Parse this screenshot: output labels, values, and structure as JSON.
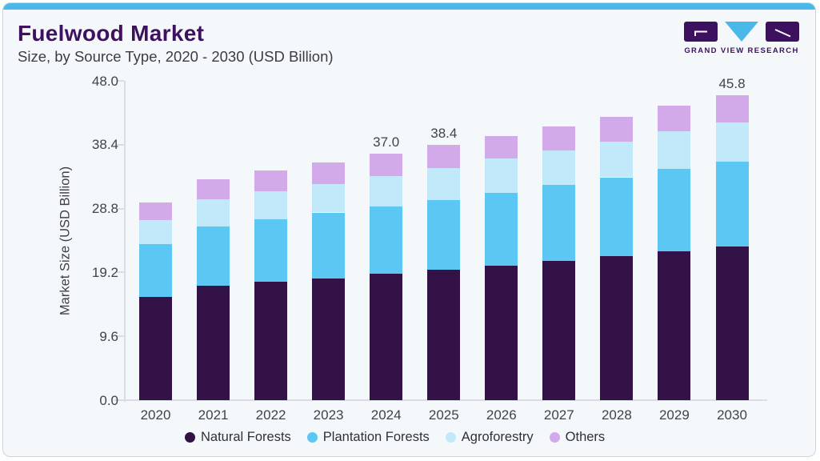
{
  "header": {
    "title": "Fuelwood Market",
    "subtitle": "Size, by Source Type, 2020 - 2030 (USD Billion)"
  },
  "logo": {
    "text": "GRAND VIEW RESEARCH"
  },
  "colors": {
    "accent_strip": "#4ab9e9",
    "card_background": "#f4f8fb",
    "card_border": "#ccd6de",
    "brand_purple": "#3e1060",
    "axis_line": "#d9dee4",
    "tick_text": "#3f434c",
    "body_text": "#3c3c42"
  },
  "chart_data": {
    "type": "bar",
    "stacked": true,
    "title": "Fuelwood Market",
    "subtitle": "Size, by Source Type, 2020 - 2030 (USD Billion)",
    "xlabel": "",
    "ylabel": "Market Size (USD Billion)",
    "ylim": [
      0,
      48
    ],
    "yticks": [
      "0.0",
      "9.6",
      "19.2",
      "28.8",
      "38.4",
      "48.0"
    ],
    "grid": false,
    "legend_position": "bottom",
    "categories": [
      "2020",
      "2021",
      "2022",
      "2023",
      "2024",
      "2025",
      "2026",
      "2027",
      "2028",
      "2029",
      "2030"
    ],
    "series": [
      {
        "name": "Natural Forests",
        "color": "#331247",
        "values": [
          15.5,
          17.2,
          17.8,
          18.3,
          19.0,
          19.6,
          20.2,
          20.9,
          21.6,
          22.4,
          23.1
        ]
      },
      {
        "name": "Plantation Forests",
        "color": "#5cc7f2",
        "values": [
          8.0,
          8.9,
          9.4,
          9.9,
          10.1,
          10.5,
          11.0,
          11.5,
          11.9,
          12.4,
          12.8
        ]
      },
      {
        "name": "Agroforestry",
        "color": "#c1e9f9",
        "values": [
          3.6,
          4.1,
          4.2,
          4.3,
          4.6,
          4.8,
          5.1,
          5.1,
          5.4,
          5.6,
          5.9
        ]
      },
      {
        "name": "Others",
        "color": "#d2a9e9",
        "values": [
          2.6,
          3.0,
          3.1,
          3.2,
          3.3,
          3.5,
          3.4,
          3.6,
          3.7,
          3.9,
          4.0
        ]
      }
    ],
    "totals": [
      29.7,
      33.2,
      34.5,
      35.7,
      37.0,
      38.4,
      39.7,
      41.1,
      42.6,
      44.3,
      45.8
    ],
    "total_labels": {
      "2024": "37.0",
      "2025": "38.4",
      "2030": "45.8"
    }
  }
}
